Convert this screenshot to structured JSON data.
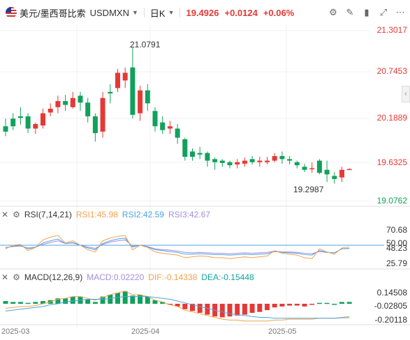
{
  "header": {
    "pair_name": "美元/墨西哥比索",
    "symbol": "USDMXN",
    "period": "日K",
    "price": "19.4926",
    "change": "+0.0124",
    "change_pct": "+0.06%"
  },
  "icons": [
    "settings-icon",
    "draw-icon",
    "candle-type-icon",
    "fullscreen-icon",
    "more-icon"
  ],
  "price_axis": {
    "top": "21.3017",
    "l2": "20.7453",
    "l3": "20.1889",
    "l4": "19.6325",
    "bottom": "19.0762"
  },
  "annotations": {
    "high": "21.0791",
    "low": "19.2987"
  },
  "rsi": {
    "name": "RSI(7,14,21)",
    "rsi1": "RSI1:45.98",
    "rsi2": "RSI2:42.59",
    "rsi3": "RSI3:42.67",
    "axis_top": "70.68",
    "axis_mid1": "50.00",
    "axis_mid2": "48.23",
    "axis_bottom": "25.79"
  },
  "macd": {
    "name": "MACD(12,26,9)",
    "macd": "MACD:0.02220",
    "dif": "DIF:-0.14338",
    "dea": "DEA:-0.15448",
    "axis_top": "0.14508",
    "axis_mid": "-0.02805",
    "axis_bottom": "-0.20118"
  },
  "dates": [
    "2025-03",
    "2025-04",
    "2025-05"
  ],
  "colors": {
    "up": "#e53935",
    "down": "#11a15c",
    "rsi1": "#f5a24b",
    "rsi2": "#4ba3e3",
    "rsi3": "#a58ce0",
    "dif": "#f5a24b",
    "dea": "#4ba3e3"
  },
  "chart_data": {
    "type": "candlestick",
    "ylim": [
      19.0762,
      21.3017
    ],
    "candles": [
      [
        20.05,
        19.98,
        20.15,
        19.92
      ],
      [
        20.15,
        20.05,
        20.22,
        20.0
      ],
      [
        20.18,
        20.16,
        20.3,
        20.07
      ],
      [
        20.18,
        20.02,
        20.22,
        19.96
      ],
      [
        20.02,
        20.08,
        20.1,
        19.95
      ],
      [
        20.06,
        20.22,
        20.28,
        20.02
      ],
      [
        20.23,
        20.28,
        20.35,
        20.18
      ],
      [
        20.3,
        20.38,
        20.45,
        20.22
      ],
      [
        20.38,
        20.33,
        20.46,
        20.25
      ],
      [
        20.3,
        20.42,
        20.5,
        20.28
      ],
      [
        20.45,
        20.36,
        20.5,
        20.25
      ],
      [
        20.36,
        20.18,
        20.42,
        20.1
      ],
      [
        20.18,
        19.96,
        20.22,
        19.85
      ],
      [
        19.98,
        20.42,
        20.5,
        19.9
      ],
      [
        20.5,
        20.48,
        20.6,
        20.35
      ],
      [
        20.55,
        20.75,
        20.8,
        20.5
      ],
      [
        20.65,
        20.75,
        20.82,
        20.55
      ],
      [
        20.82,
        20.2,
        21.08,
        20.15
      ],
      [
        20.22,
        20.52,
        20.58,
        20.12
      ],
      [
        20.52,
        20.35,
        20.6,
        20.25
      ],
      [
        20.25,
        20.05,
        20.3,
        19.98
      ],
      [
        20.1,
        20.0,
        20.18,
        19.95
      ],
      [
        20.02,
        20.05,
        20.12,
        19.95
      ],
      [
        20.02,
        19.9,
        20.08,
        19.82
      ],
      [
        19.88,
        19.65,
        19.9,
        19.6
      ],
      [
        19.72,
        19.65,
        19.76,
        19.6
      ],
      [
        19.7,
        19.68,
        19.78,
        19.62
      ],
      [
        19.7,
        19.6,
        19.72,
        19.52
      ],
      [
        19.62,
        19.58,
        19.64,
        19.48
      ],
      [
        19.6,
        19.57,
        19.62,
        19.52
      ],
      [
        19.58,
        19.54,
        19.6,
        19.5
      ],
      [
        19.55,
        19.58,
        19.62,
        19.5
      ],
      [
        19.56,
        19.6,
        19.64,
        19.52
      ],
      [
        19.62,
        19.58,
        19.66,
        19.55
      ],
      [
        19.58,
        19.6,
        19.65,
        19.52
      ],
      [
        19.58,
        19.6,
        19.65,
        19.55
      ],
      [
        19.6,
        19.66,
        19.7,
        19.58
      ],
      [
        19.66,
        19.62,
        19.72,
        19.56
      ],
      [
        19.62,
        19.6,
        19.66,
        19.55
      ],
      [
        19.58,
        19.54,
        19.6,
        19.5
      ],
      [
        19.52,
        19.48,
        19.56,
        19.45
      ],
      [
        19.5,
        19.5,
        19.58,
        19.44
      ],
      [
        19.6,
        19.44,
        19.62,
        19.42
      ],
      [
        19.48,
        19.42,
        19.6,
        19.32
      ],
      [
        19.4,
        19.36,
        19.45,
        19.3
      ],
      [
        19.38,
        19.48,
        19.52,
        19.32
      ],
      [
        19.49,
        19.49,
        19.5,
        19.48
      ]
    ],
    "rsi1": [
      42,
      50,
      52,
      38,
      45,
      62,
      68,
      72,
      55,
      60,
      50,
      40,
      35,
      60,
      66,
      70,
      72,
      40,
      50,
      45,
      35,
      32,
      30,
      28,
      22,
      24,
      26,
      25,
      22,
      22,
      20,
      22,
      24,
      22,
      24,
      26,
      38,
      32,
      30,
      28,
      22,
      20,
      42,
      35,
      30,
      44,
      46
    ],
    "rsi2": [
      44,
      48,
      50,
      42,
      45,
      55,
      60,
      64,
      54,
      56,
      50,
      44,
      40,
      54,
      60,
      64,
      66,
      46,
      50,
      46,
      40,
      38,
      36,
      34,
      30,
      30,
      31,
      30,
      29,
      29,
      28,
      29,
      30,
      29,
      30,
      31,
      36,
      34,
      33,
      32,
      29,
      28,
      38,
      34,
      33,
      42,
      43
    ],
    "rsi3": [
      45,
      47,
      48,
      44,
      46,
      52,
      56,
      60,
      54,
      55,
      50,
      46,
      43,
      52,
      57,
      60,
      62,
      48,
      50,
      47,
      42,
      40,
      39,
      37,
      34,
      33,
      34,
      33,
      32,
      32,
      31,
      32,
      33,
      32,
      33,
      34,
      37,
      35,
      35,
      34,
      32,
      31,
      36,
      34,
      33,
      42,
      43
    ],
    "macd_hist": [
      0.03,
      0.02,
      0.02,
      0.01,
      0.02,
      0.03,
      0.04,
      0.06,
      0.06,
      0.08,
      0.08,
      0.05,
      0.02,
      0.08,
      0.1,
      0.12,
      0.14,
      0.09,
      0.1,
      0.08,
      0.04,
      0.02,
      -0.01,
      -0.03,
      -0.06,
      -0.08,
      -0.1,
      -0.12,
      -0.14,
      -0.15,
      -0.14,
      -0.13,
      -0.12,
      -0.1,
      -0.09,
      -0.07,
      -0.04,
      -0.03,
      -0.02,
      -0.02,
      -0.03,
      -0.01,
      0.01,
      0.01,
      0.0,
      0.02,
      0.02
    ],
    "dif": [
      -0.05,
      -0.04,
      -0.03,
      -0.03,
      -0.02,
      0.0,
      0.02,
      0.05,
      0.06,
      0.08,
      0.08,
      0.06,
      0.04,
      0.07,
      0.1,
      0.12,
      0.14,
      0.1,
      0.1,
      0.08,
      0.04,
      0.02,
      -0.01,
      -0.03,
      -0.07,
      -0.09,
      -0.11,
      -0.13,
      -0.15,
      -0.17,
      -0.18,
      -0.18,
      -0.19,
      -0.19,
      -0.19,
      -0.19,
      -0.18,
      -0.18,
      -0.17,
      -0.17,
      -0.17,
      -0.17,
      -0.16,
      -0.16,
      -0.16,
      -0.15,
      -0.14
    ],
    "dea": [
      -0.08,
      -0.07,
      -0.06,
      -0.05,
      -0.04,
      -0.03,
      -0.01,
      0.0,
      0.02,
      0.03,
      0.04,
      0.05,
      0.05,
      0.05,
      0.06,
      0.07,
      0.08,
      0.08,
      0.08,
      0.08,
      0.07,
      0.06,
      0.05,
      0.03,
      0.01,
      -0.01,
      -0.03,
      -0.05,
      -0.07,
      -0.09,
      -0.11,
      -0.12,
      -0.13,
      -0.14,
      -0.15,
      -0.15,
      -0.16,
      -0.16,
      -0.16,
      -0.16,
      -0.16,
      -0.16,
      -0.16,
      -0.16,
      -0.16,
      -0.155,
      -0.154
    ]
  }
}
